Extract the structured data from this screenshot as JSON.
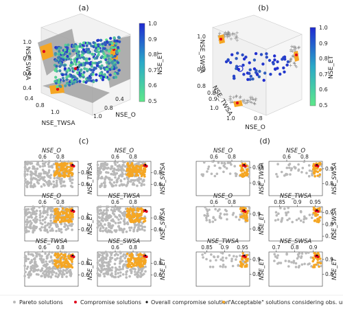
{
  "figure": {
    "panel_labels": [
      "(a)",
      "(b)",
      "(c)",
      "(d)"
    ],
    "colorbar": {
      "label": "NSE_ET",
      "ticks": [
        "1.0",
        "0.9",
        "0.8",
        "0.7",
        "0.6",
        "0.5"
      ],
      "color_low": "#5ee88a",
      "color_high": "#1f2ad1"
    },
    "colors": {
      "pareto": "#b9b9b9",
      "acceptable": "#f5a623",
      "compromise": "#e0001b",
      "overall": "#111111",
      "surface_gray": "#a6a6a6"
    },
    "legend": {
      "pareto": "Pareto solutions",
      "compromise": "Compromise solutions",
      "overall": "Overall compromise solution",
      "acceptable": "\"Acceptable\" solutions considering obs. uncertainties"
    }
  },
  "chart_data": [
    {
      "type": "scatter",
      "panel": "(a)",
      "axes_3d": {
        "x": {
          "label": "NSE_O",
          "ticks": [
            "0.4",
            "0.8",
            "1.0"
          ]
        },
        "y": {
          "label": "NSE_TWSA",
          "ticks": [
            "0.4",
            "0.8",
            "1.0"
          ]
        },
        "z": {
          "label": "NSE_SWSA",
          "ticks": [
            "0.4",
            "0.6",
            "0.8",
            "1.0"
          ]
        }
      },
      "series": [
        {
          "name": "Pareto solutions",
          "points": [
            [
              0.62,
              0.62,
              0.78
            ],
            [
              0.66,
              0.74,
              0.72
            ],
            [
              0.71,
              0.69,
              0.83
            ],
            [
              0.75,
              0.78,
              0.7
            ],
            [
              0.8,
              0.71,
              0.76
            ],
            [
              0.69,
              0.81,
              0.64
            ],
            [
              0.58,
              0.72,
              0.86
            ],
            [
              0.84,
              0.82,
              0.69
            ],
            [
              0.77,
              0.64,
              0.88
            ],
            [
              0.72,
              0.86,
              0.66
            ]
          ]
        }
      ]
    },
    {
      "type": "scatter",
      "panel": "(b)",
      "axes_3d": {
        "x": {
          "label": "NSE_O",
          "ticks": [
            "1.0",
            "0.8"
          ]
        },
        "y": {
          "label": "NSE_TWSA",
          "ticks": [
            "1.0",
            "0.9",
            "0.8"
          ]
        },
        "z": {
          "label": "NSE_SWSA",
          "ticks": [
            "0.8",
            "0.9",
            "1.0"
          ]
        }
      },
      "series": [
        {
          "name": "Pareto solutions",
          "points": [
            [
              0.86,
              0.9,
              0.89
            ],
            [
              0.9,
              0.87,
              0.93
            ],
            [
              0.83,
              0.93,
              0.86
            ],
            [
              0.93,
              0.91,
              0.91
            ],
            [
              0.88,
              0.95,
              0.84
            ],
            [
              0.95,
              0.86,
              0.95
            ]
          ]
        }
      ]
    },
    {
      "type": "scatter",
      "panel": "(c)",
      "subplots": [
        {
          "xlabel": "NSE_O",
          "ylabel": "NSE_TWSA",
          "xticks": [
            0.6,
            0.8
          ],
          "yticks": [
            0.6,
            0.8
          ],
          "xlim": [
            0.4,
            1.0
          ],
          "ylim": [
            0.4,
            1.0
          ]
        },
        {
          "xlabel": "NSE_O",
          "ylabel": "NSE_SWSA",
          "xticks": [
            0.6,
            0.8
          ],
          "yticks": [
            0.6,
            0.8
          ],
          "xlim": [
            0.4,
            1.0
          ],
          "ylim": [
            0.4,
            1.0
          ]
        },
        {
          "xlabel": "NSE_O",
          "ylabel": "NSE_ET",
          "xticks": [
            0.6,
            0.8
          ],
          "yticks": [
            0.6,
            0.8
          ],
          "xlim": [
            0.4,
            1.0
          ],
          "ylim": [
            0.4,
            1.0
          ]
        },
        {
          "xlabel": "NSE_TWSA",
          "ylabel": "NSE_SWSA",
          "xticks": [
            0.6,
            0.8
          ],
          "yticks": [
            0.6,
            0.8
          ],
          "xlim": [
            0.4,
            1.0
          ],
          "ylim": [
            0.4,
            1.0
          ]
        },
        {
          "xlabel": "NSE_TWSA",
          "ylabel": "NSE_ET",
          "xticks": [
            0.6,
            0.8
          ],
          "yticks": [
            0.6,
            0.8
          ],
          "xlim": [
            0.4,
            1.0
          ],
          "ylim": [
            0.4,
            1.0
          ]
        },
        {
          "xlabel": "NSE_SWSA",
          "ylabel": "NSE_ET",
          "xticks": [
            0.6,
            0.8
          ],
          "yticks": [
            0.6,
            0.8
          ],
          "xlim": [
            0.4,
            1.0
          ],
          "ylim": [
            0.4,
            1.0
          ]
        }
      ]
    },
    {
      "type": "scatter",
      "panel": "(d)",
      "subplots": [
        {
          "xlabel": "NSE_O",
          "ylabel": "NSE_TWSA",
          "xticks": [
            0.6,
            0.8
          ],
          "yticks": [
            0.9,
            0.95
          ],
          "xlim": [
            0.4,
            1.0
          ],
          "ylim": [
            0.86,
            0.97
          ]
        },
        {
          "xlabel": "NSE_O",
          "ylabel": "NSE_SWSA",
          "xticks": [
            0.6,
            0.8
          ],
          "yticks": [
            0.8,
            0.9
          ],
          "xlim": [
            0.4,
            1.0
          ],
          "ylim": [
            0.72,
            0.95
          ]
        },
        {
          "xlabel": "NSE_O",
          "ylabel": "NSE_ET",
          "xticks": [
            0.6,
            0.8
          ],
          "yticks": [
            0.8,
            0.9
          ],
          "xlim": [
            0.4,
            1.0
          ],
          "ylim": [
            0.72,
            0.95
          ]
        },
        {
          "xlabel": "NSE_TWSA",
          "ylabel": "NSE_SWSA",
          "xticks": [
            0.85,
            0.9,
            0.95
          ],
          "yticks": [
            0.7,
            0.8,
            0.9
          ],
          "xlim": [
            0.82,
            0.97
          ],
          "ylim": [
            0.66,
            0.95
          ]
        },
        {
          "xlabel": "NSE_TWSA",
          "ylabel": "NSE_ET",
          "xticks": [
            0.85,
            0.9,
            0.95
          ],
          "yticks": [
            0.8,
            0.9
          ],
          "xlim": [
            0.82,
            0.97
          ],
          "ylim": [
            0.72,
            0.95
          ]
        },
        {
          "xlabel": "NSE_SWSA",
          "ylabel": "NSE_ET",
          "xticks": [
            0.7,
            0.8,
            0.9
          ],
          "yticks": [
            0.8,
            0.9
          ],
          "xlim": [
            0.66,
            0.95
          ],
          "ylim": [
            0.72,
            0.95
          ]
        }
      ]
    }
  ]
}
